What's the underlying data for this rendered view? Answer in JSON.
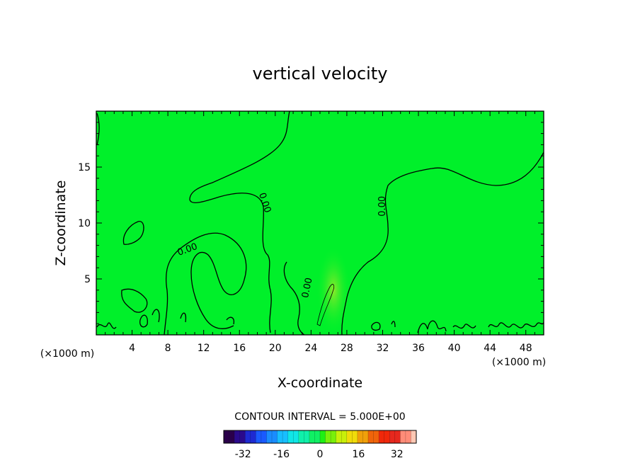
{
  "chart_data": {
    "type": "heatmap",
    "title": "vertical velocity",
    "xlabel": "X-coordinate",
    "ylabel": "Z-coordinate",
    "x_unit_left": "(×1000 m)",
    "x_unit_right": "(×1000 m)",
    "xlim": [
      0,
      50
    ],
    "ylim": [
      0,
      20
    ],
    "x_ticks": [
      4,
      8,
      12,
      16,
      20,
      24,
      28,
      32,
      36,
      40,
      44,
      48
    ],
    "y_ticks": [
      5,
      10,
      15
    ],
    "field_background_color": "#00f02a",
    "contour_color": "#000000",
    "contour_interval_text": "CONTOUR INTERVAL = 5.000E+00",
    "contour_labels": [
      {
        "text": "0.00",
        "x": 10.2,
        "z": 7.6,
        "angle": -20
      },
      {
        "text": "0.00",
        "x": 18.8,
        "z": 11.8,
        "angle": 72
      },
      {
        "text": "0.00",
        "x": 23.6,
        "z": 4.2,
        "angle": -78
      },
      {
        "text": "0.00",
        "x": 32.0,
        "z": 11.5,
        "angle": -90
      }
    ],
    "colorbar": {
      "range": [
        -40,
        40
      ],
      "tick_labels": [
        "-32",
        "-16",
        "0",
        "16",
        "32"
      ],
      "tick_values": [
        -32,
        -16,
        0,
        16,
        32
      ],
      "colors": [
        "#2a004a",
        "#2a0a8c",
        "#1e2ad2",
        "#1a5aff",
        "#1a8cff",
        "#18beff",
        "#10e6e6",
        "#10f0aa",
        "#10f064",
        "#1ef014",
        "#78f00a",
        "#c8f00a",
        "#f0dc0a",
        "#f0a00a",
        "#f0640a",
        "#f0280a",
        "#e6281e",
        "#ff8c78",
        "#ffc8b4"
      ]
    }
  }
}
